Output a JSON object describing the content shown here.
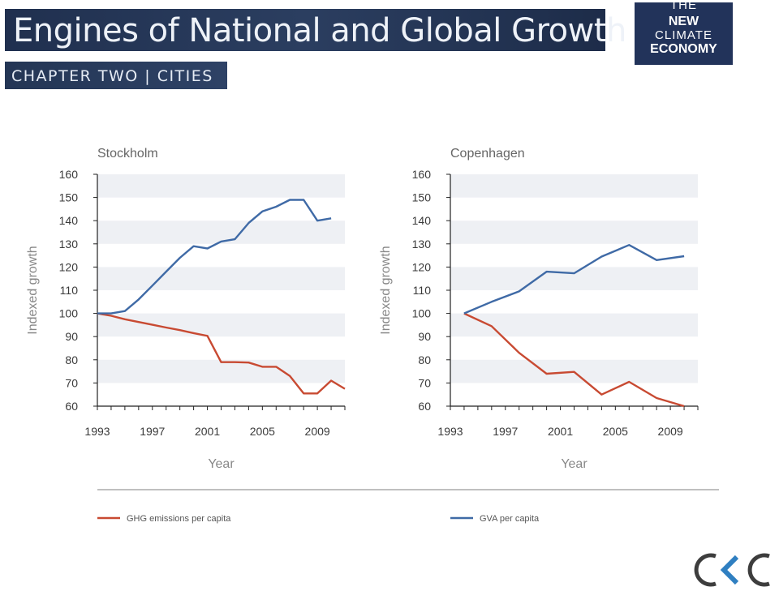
{
  "header": {
    "title": "Engines of National and Global Growth",
    "chapter": "CHAPTER TWO | CITIES"
  },
  "logo": {
    "line1": "THE",
    "line2": "NEW",
    "line3": "CLIMATE",
    "line4": "ECONOMY"
  },
  "footer_logo": {
    "icon": "ckc-logo-icon",
    "text": "CKC"
  },
  "colors": {
    "ghg": "#c84a32",
    "gva": "#3f6aa6",
    "band": "#eef0f4",
    "axis_text": "#3a3a3a",
    "label_text": "#888888",
    "brand": "#22335a"
  },
  "chart_data": [
    {
      "type": "line",
      "title": "Stockholm",
      "xlabel": "Year",
      "ylabel": "Indexed growth",
      "xlim": [
        1993,
        2011
      ],
      "ylim": [
        60,
        160
      ],
      "xticks": [
        1993,
        1997,
        2001,
        2005,
        2009
      ],
      "yticks": [
        60,
        70,
        80,
        90,
        100,
        110,
        120,
        130,
        140,
        150,
        160
      ],
      "grid": "alternating horizontal bands",
      "series": [
        {
          "name": "GHG emissions per capita",
          "points": [
            [
              1993,
              100
            ],
            [
              1994,
              99
            ],
            [
              1995,
              97.5
            ],
            [
              1996,
              96.3
            ],
            [
              1997,
              95.1
            ],
            [
              1998,
              93.9
            ],
            [
              1999,
              92.8
            ],
            [
              2000,
              91.5
            ],
            [
              2001,
              90.3
            ],
            [
              2002,
              79
            ],
            [
              2003,
              79
            ],
            [
              2004,
              78.8
            ],
            [
              2005,
              77
            ],
            [
              2006,
              77
            ],
            [
              2007,
              73
            ],
            [
              2008,
              65.5
            ],
            [
              2009,
              65.5
            ],
            [
              2010,
              71
            ],
            [
              2011,
              67.5
            ]
          ]
        },
        {
          "name": "GVA per capita",
          "points": [
            [
              1993,
              100
            ],
            [
              1994,
              100
            ],
            [
              1995,
              101
            ],
            [
              1996,
              106
            ],
            [
              1997,
              112
            ],
            [
              1998,
              118
            ],
            [
              1999,
              124
            ],
            [
              2000,
              129
            ],
            [
              2001,
              128
            ],
            [
              2002,
              131
            ],
            [
              2003,
              132
            ],
            [
              2004,
              139
            ],
            [
              2005,
              144
            ],
            [
              2006,
              146
            ],
            [
              2007,
              149
            ],
            [
              2008,
              149
            ],
            [
              2009,
              140
            ],
            [
              2010,
              141
            ]
          ]
        }
      ]
    },
    {
      "type": "line",
      "title": "Copenhagen",
      "xlabel": "Year",
      "ylabel": "Indexed growth",
      "xlim": [
        1993,
        2011
      ],
      "ylim": [
        60,
        160
      ],
      "xticks": [
        1993,
        1997,
        2001,
        2005,
        2009
      ],
      "yticks": [
        60,
        70,
        80,
        90,
        100,
        110,
        120,
        130,
        140,
        150,
        160
      ],
      "grid": "alternating horizontal bands",
      "series": [
        {
          "name": "GHG emissions per capita",
          "points": [
            [
              1994,
              100
            ],
            [
              1996,
              94.5
            ],
            [
              1998,
              83
            ],
            [
              2000,
              74
            ],
            [
              2002,
              74.8
            ],
            [
              2004,
              65
            ],
            [
              2006,
              70.5
            ],
            [
              2008,
              63.5
            ],
            [
              2010,
              60
            ]
          ]
        },
        {
          "name": "GVA per capita",
          "points": [
            [
              1994,
              100
            ],
            [
              1996,
              105
            ],
            [
              1998,
              109.5
            ],
            [
              2000,
              118
            ],
            [
              2002,
              117.3
            ],
            [
              2004,
              124.5
            ],
            [
              2006,
              129.5
            ],
            [
              2008,
              123
            ],
            [
              2010,
              124.7
            ]
          ]
        }
      ]
    }
  ],
  "legend": {
    "items": [
      {
        "label": "GHG emissions per capita",
        "series": 0
      },
      {
        "label": "GVA per capita",
        "series": 1
      }
    ]
  }
}
